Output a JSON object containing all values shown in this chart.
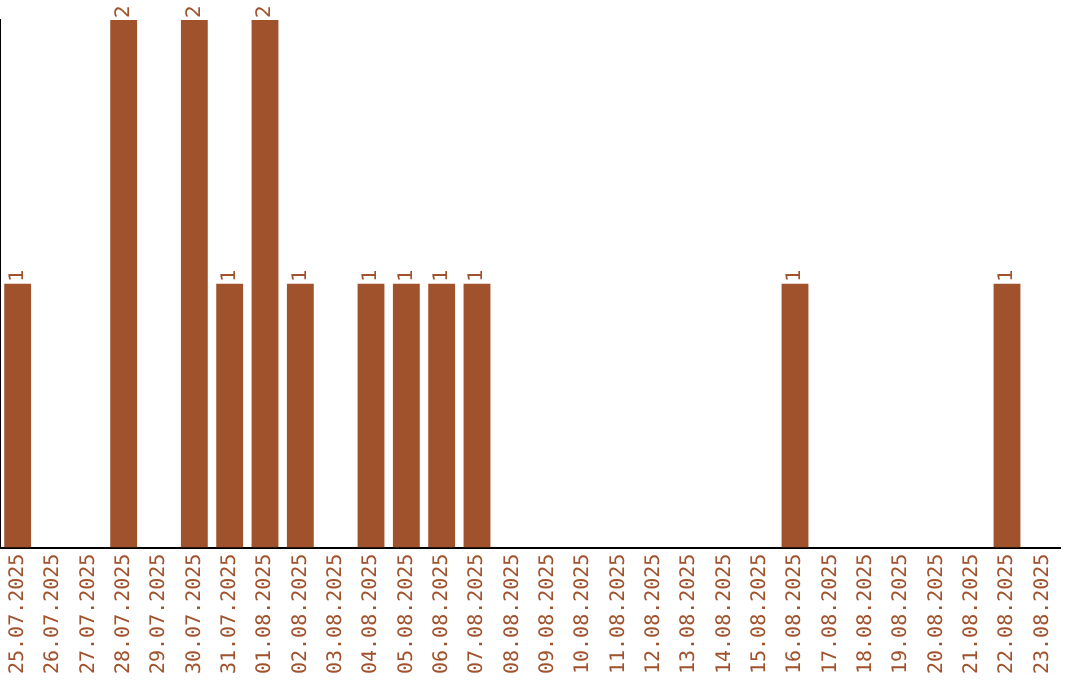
{
  "chart_data": {
    "type": "bar",
    "categories": [
      "25.07.2025",
      "26.07.2025",
      "27.07.2025",
      "28.07.2025",
      "29.07.2025",
      "30.07.2025",
      "31.07.2025",
      "01.08.2025",
      "02.08.2025",
      "03.08.2025",
      "04.08.2025",
      "05.08.2025",
      "06.08.2025",
      "07.08.2025",
      "08.08.2025",
      "09.08.2025",
      "10.08.2025",
      "11.08.2025",
      "12.08.2025",
      "13.08.2025",
      "14.08.2025",
      "15.08.2025",
      "16.08.2025",
      "17.08.2025",
      "18.08.2025",
      "19.08.2025",
      "20.08.2025",
      "21.08.2025",
      "22.08.2025",
      "23.08.2025"
    ],
    "values": [
      1,
      0,
      0,
      2,
      0,
      2,
      1,
      2,
      1,
      0,
      1,
      1,
      1,
      1,
      0,
      0,
      0,
      0,
      0,
      0,
      0,
      0,
      1,
      0,
      0,
      0,
      0,
      0,
      1,
      0
    ],
    "value_labels": [
      "1",
      null,
      null,
      "2",
      null,
      "2",
      "1",
      "2",
      "1",
      null,
      "1",
      "1",
      "1",
      "1",
      null,
      null,
      null,
      null,
      null,
      null,
      null,
      null,
      "1",
      null,
      null,
      null,
      null,
      null,
      "1",
      null
    ],
    "color": "#a0522d",
    "ylim": [
      0,
      2
    ],
    "tick_labels": "x",
    "grid": false,
    "legend": false
  }
}
